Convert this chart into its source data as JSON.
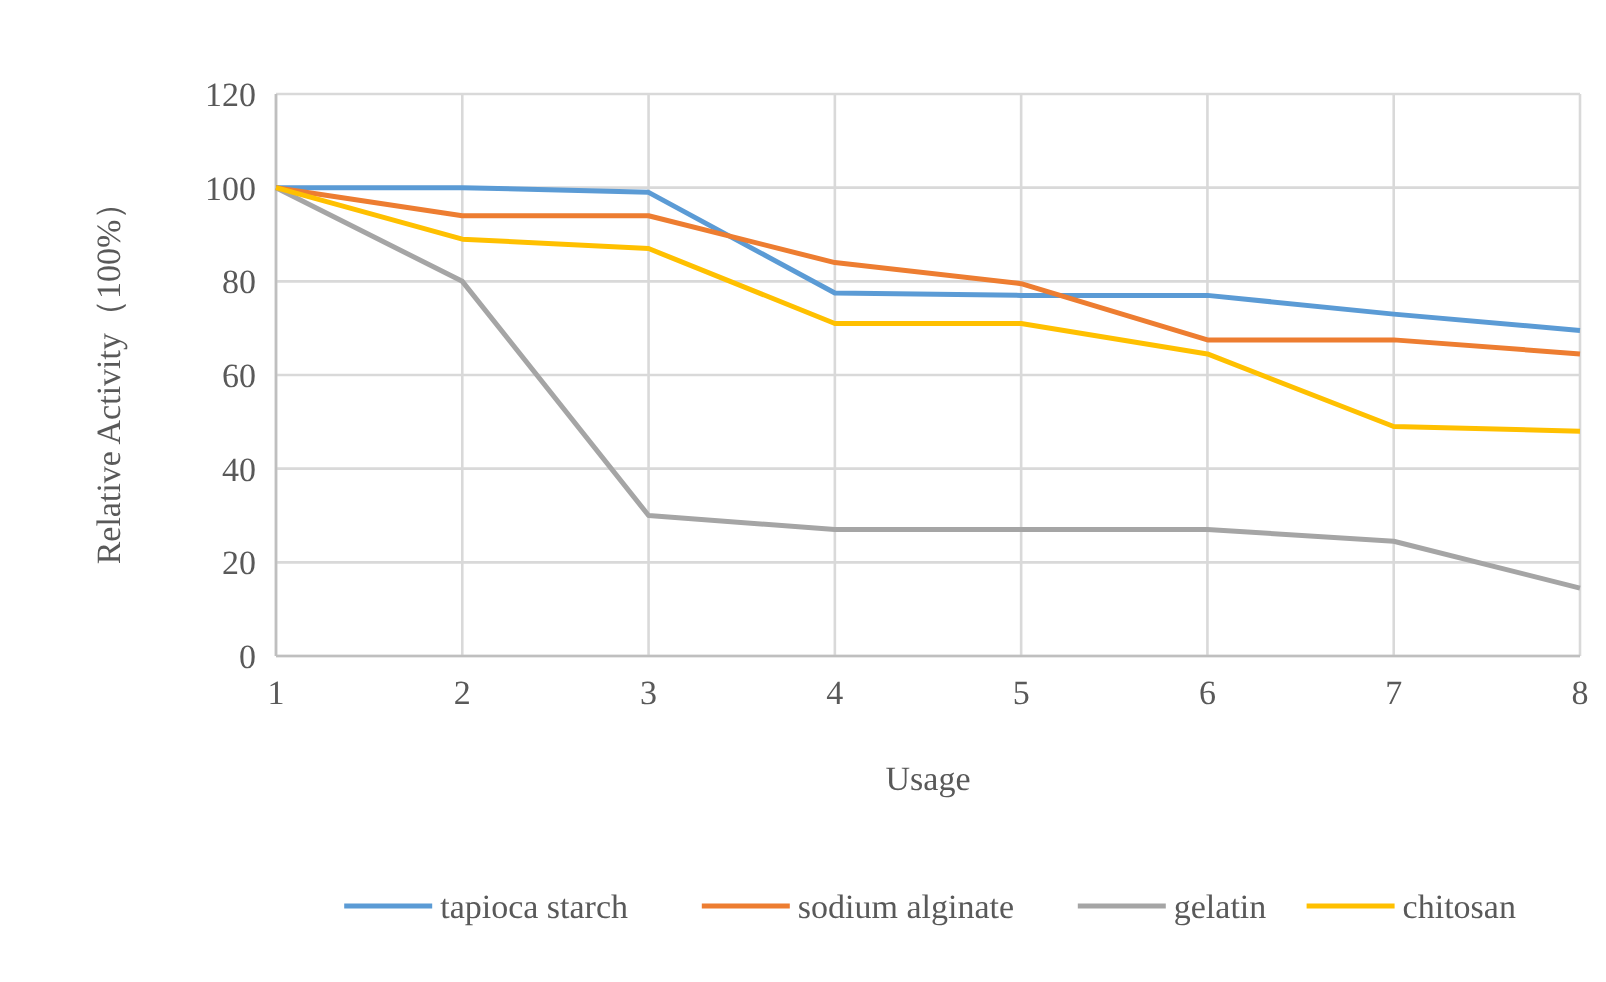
{
  "chart_data": {
    "type": "line",
    "xlabel": "Usage",
    "ylabel": "Relative Activity（100%）",
    "x": [
      1,
      2,
      3,
      4,
      5,
      6,
      7,
      8
    ],
    "xlim": [
      1,
      8
    ],
    "xticks": [
      1,
      2,
      3,
      4,
      5,
      6,
      7,
      8
    ],
    "ylim": [
      0,
      120
    ],
    "yticks": [
      0,
      20,
      40,
      60,
      80,
      100,
      120
    ],
    "grid": true,
    "legend": "bottom",
    "marker": "none",
    "line_style": "solid",
    "series": [
      {
        "name": "tapioca starch",
        "color": "#5b9bd5",
        "values": [
          100,
          100,
          99,
          77.5,
          77,
          77,
          73,
          69.5
        ]
      },
      {
        "name": "sodium alginate",
        "color": "#ed7d31",
        "values": [
          100,
          94,
          94,
          84,
          79.5,
          67.5,
          67.5,
          64.5
        ]
      },
      {
        "name": "gelatin",
        "color": "#a5a5a5",
        "values": [
          100,
          80,
          30,
          27,
          27,
          27,
          24.5,
          14.5
        ]
      },
      {
        "name": "chitosan",
        "color": "#ffc000",
        "values": [
          100,
          89,
          87,
          71,
          71,
          64.5,
          49,
          48
        ]
      }
    ]
  }
}
